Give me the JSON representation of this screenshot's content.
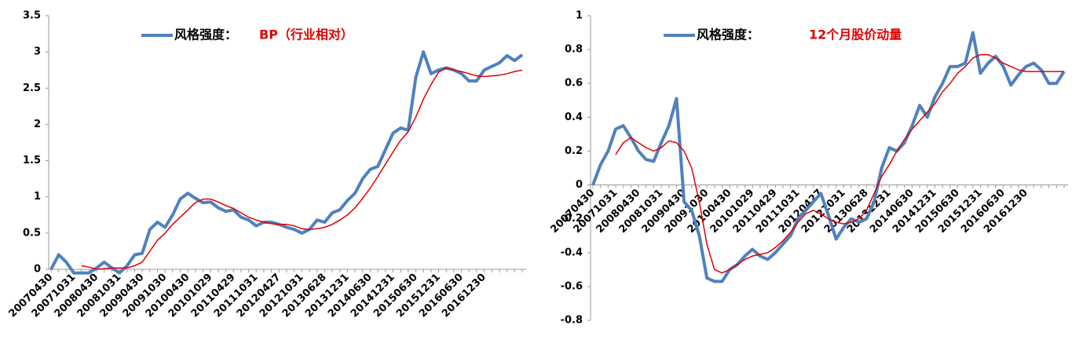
{
  "chart_data": [
    {
      "type": "line",
      "title": "BP（行业相对）",
      "categories": [
        "20070430",
        null,
        null,
        "20071031",
        null,
        null,
        "20080430",
        null,
        null,
        "20081031",
        null,
        null,
        "20090430",
        null,
        null,
        "20091030",
        null,
        null,
        "20100430",
        null,
        null,
        "20101029",
        null,
        null,
        "20110429",
        null,
        null,
        "20111031",
        null,
        null,
        "20120427",
        null,
        null,
        "20121031",
        null,
        null,
        "20130628",
        null,
        null,
        "20131231",
        null,
        null,
        "20140630",
        null,
        null,
        "20141231",
        null,
        null,
        "20150630",
        null,
        null,
        "20151231",
        null,
        null,
        "20160630",
        null,
        null,
        "20161230",
        null,
        null,
        null,
        null,
        null
      ],
      "series": [
        {
          "name": "风格强度：",
          "color": "#4f81bd",
          "values": [
            0,
            0.2,
            0.1,
            -0.05,
            -0.05,
            -0.05,
            0.02,
            0.1,
            0.02,
            -0.05,
            0.05,
            0.2,
            0.22,
            0.55,
            0.65,
            0.58,
            0.75,
            0.97,
            1.05,
            0.98,
            0.92,
            0.93,
            0.85,
            0.8,
            0.82,
            0.72,
            0.68,
            0.6,
            0.65,
            0.65,
            0.62,
            0.58,
            0.55,
            0.5,
            0.55,
            0.68,
            0.65,
            0.78,
            0.82,
            0.95,
            1.05,
            1.25,
            1.38,
            1.42,
            1.65,
            1.88,
            1.95,
            1.92,
            2.65,
            3.0,
            2.7,
            2.75,
            2.78,
            2.75,
            2.7,
            2.6,
            2.6,
            2.75,
            2.8,
            2.85,
            2.95,
            2.88,
            2.96
          ]
        },
        {
          "color": "#e00000",
          "values": [
            null,
            null,
            null,
            null,
            0.05,
            0.03,
            0,
            0.01,
            0.02,
            0.02,
            0.02,
            0.05,
            0.1,
            0.25,
            0.4,
            0.5,
            0.62,
            0.72,
            0.82,
            0.92,
            0.97,
            0.97,
            0.93,
            0.88,
            0.84,
            0.78,
            0.72,
            0.68,
            0.65,
            0.63,
            0.62,
            0.62,
            0.6,
            0.56,
            0.55,
            0.56,
            0.58,
            0.62,
            0.68,
            0.75,
            0.85,
            0.98,
            1.12,
            1.28,
            1.45,
            1.62,
            1.78,
            1.9,
            2.1,
            2.35,
            2.55,
            2.72,
            2.78,
            2.75,
            2.73,
            2.7,
            2.67,
            2.66,
            2.67,
            2.68,
            2.7,
            2.73,
            2.75
          ]
        }
      ],
      "ylim": [
        0,
        3.5
      ],
      "yticks": [
        0,
        0.5,
        1,
        1.5,
        2,
        2.5,
        3,
        3.5
      ]
    },
    {
      "type": "line",
      "title": "12个月股价动量",
      "categories": [
        "20070430",
        null,
        null,
        "20071031",
        null,
        null,
        "20080430",
        null,
        null,
        "20081031",
        null,
        null,
        "20090430",
        null,
        null,
        "20091030",
        null,
        null,
        "20100430",
        null,
        null,
        "20101029",
        null,
        null,
        "20110429",
        null,
        null,
        "20111031",
        null,
        null,
        "20120427",
        null,
        null,
        "20121031",
        null,
        null,
        "20130628",
        null,
        null,
        "20131231",
        null,
        null,
        "20140630",
        null,
        null,
        "20141231",
        null,
        null,
        "20150630",
        null,
        null,
        "20151231",
        null,
        null,
        "20160630",
        null,
        null,
        "20161230",
        null,
        null,
        null,
        null,
        null
      ],
      "series": [
        {
          "name": "风格强度：",
          "color": "#4f81bd",
          "values": [
            0,
            0.12,
            0.2,
            0.33,
            0.35,
            0.28,
            0.2,
            0.15,
            0.14,
            0.25,
            0.35,
            0.51,
            -0.1,
            -0.15,
            -0.3,
            -0.55,
            -0.57,
            -0.57,
            -0.5,
            -0.47,
            -0.42,
            -0.38,
            -0.42,
            -0.44,
            -0.4,
            -0.35,
            -0.3,
            -0.2,
            -0.15,
            -0.1,
            -0.05,
            -0.18,
            -0.32,
            -0.25,
            -0.2,
            -0.22,
            -0.2,
            -0.1,
            0.1,
            0.22,
            0.2,
            0.25,
            0.35,
            0.47,
            0.4,
            0.52,
            0.6,
            0.7,
            0.7,
            0.72,
            0.9,
            0.66,
            0.72,
            0.76,
            0.7,
            0.59,
            0.65,
            0.7,
            0.72,
            0.68,
            0.6,
            0.6,
            0.67
          ]
        },
        {
          "color": "#e00000",
          "values": [
            null,
            null,
            null,
            0.18,
            0.25,
            0.28,
            0.25,
            0.22,
            0.2,
            0.22,
            0.26,
            0.25,
            0.2,
            0.1,
            -0.1,
            -0.35,
            -0.5,
            -0.52,
            -0.5,
            -0.47,
            -0.44,
            -0.42,
            -0.41,
            -0.4,
            -0.37,
            -0.33,
            -0.28,
            -0.22,
            -0.17,
            -0.15,
            -0.17,
            -0.2,
            -0.22,
            -0.23,
            -0.22,
            -0.2,
            -0.15,
            -0.05,
            0.05,
            0.12,
            0.2,
            0.27,
            0.33,
            0.38,
            0.43,
            0.48,
            0.55,
            0.6,
            0.66,
            0.7,
            0.75,
            0.77,
            0.77,
            0.75,
            0.72,
            0.7,
            0.68,
            0.67,
            0.67,
            0.67,
            0.67,
            0.67,
            0.67
          ]
        }
      ],
      "ylim": [
        -0.8,
        1
      ],
      "yticks": [
        -0.8,
        -0.6,
        -0.4,
        -0.2,
        0,
        0.2,
        0.4,
        0.6,
        0.8,
        1
      ]
    }
  ]
}
